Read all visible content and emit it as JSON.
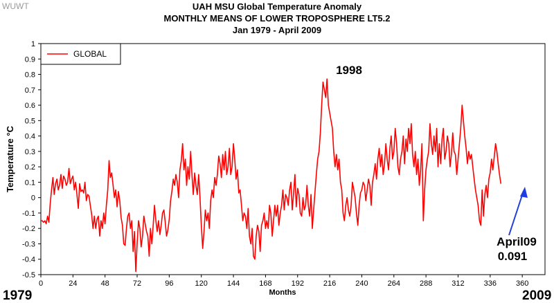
{
  "watermark": "WUWT",
  "chart_data": {
    "type": "line",
    "title": "UAH MSU Global Temperature Anomaly",
    "subtitle": "MONTHLY MEANS OF LOWER TROPOSPHERE LT5.2",
    "period": "Jan 1979 - April 2009",
    "xlabel": "Months",
    "ylabel": "Temperature °C",
    "xlim": [
      0,
      377
    ],
    "ylim": [
      -0.5,
      1
    ],
    "xticks": [
      0,
      24,
      48,
      72,
      96,
      120,
      144,
      168,
      192,
      216,
      240,
      264,
      288,
      312,
      336,
      360
    ],
    "yticks": [
      -0.5,
      -0.4,
      -0.3,
      -0.2,
      -0.1,
      0,
      0.1,
      0.2,
      0.3,
      0.4,
      0.5,
      0.6,
      0.7,
      0.8,
      0.9,
      1
    ],
    "ytick_labels": [
      "-0.5",
      "-0.4",
      "-0.3",
      "-0.2",
      "-0.1",
      "0",
      "0.1",
      "0.2",
      "0.3",
      "0.4",
      "0.5",
      "0.6",
      "0.7",
      "0.8",
      "0.9",
      "1"
    ],
    "legend": {
      "position": "top-left",
      "entries": [
        "GLOBAL"
      ]
    },
    "start_year_label": "1979",
    "end_year_label": "2009",
    "annotations": {
      "peak_label": "1998",
      "last_label": "April09",
      "last_value_label": "0.091"
    },
    "series": [
      {
        "name": "GLOBAL",
        "color": "#ff0000",
        "values": [
          -0.15,
          -0.15,
          -0.16,
          -0.15,
          -0.17,
          -0.12,
          -0.16,
          -0.04,
          0.05,
          0.13,
          0.02,
          0.09,
          0.12,
          0.05,
          0.08,
          0.15,
          0.06,
          0.14,
          0.12,
          0.08,
          0.1,
          0.19,
          0.09,
          0.12,
          0.14,
          0.05,
          0.1,
          0.02,
          -0.07,
          0.09,
          0.04,
          0.05,
          0.03,
          0.1,
          -0.02,
          0.02,
          0.01,
          -0.05,
          -0.11,
          -0.2,
          -0.12,
          -0.2,
          -0.14,
          -0.12,
          -0.25,
          -0.15,
          -0.2,
          -0.1,
          -0.17,
          -0.05,
          0.05,
          0.24,
          0.13,
          0.16,
          0.08,
          0.0,
          0.05,
          -0.06,
          0.04,
          -0.02,
          -0.13,
          -0.18,
          -0.3,
          -0.31,
          -0.2,
          -0.12,
          -0.1,
          -0.2,
          -0.15,
          -0.35,
          -0.22,
          -0.48,
          -0.3,
          -0.15,
          -0.2,
          -0.32,
          -0.25,
          -0.12,
          -0.17,
          -0.22,
          -0.25,
          -0.38,
          -0.2,
          -0.3,
          -0.18,
          -0.05,
          -0.15,
          -0.22,
          -0.15,
          -0.24,
          -0.18,
          -0.1,
          -0.08,
          -0.16,
          -0.25,
          -0.21,
          -0.14,
          -0.02,
          0.04,
          0.12,
          0.08,
          0.15,
          0.1,
          0.0,
          0.18,
          0.24,
          0.35,
          0.18,
          0.25,
          0.08,
          0.2,
          0.12,
          0.3,
          0.15,
          0.02,
          0.16,
          0.08,
          0.02,
          0.15,
          0.0,
          -0.18,
          -0.33,
          -0.22,
          -0.08,
          -0.15,
          -0.1,
          -0.2,
          -0.02,
          0.05,
          0.0,
          0.13,
          0.08,
          0.15,
          0.27,
          0.22,
          0.13,
          0.28,
          0.18,
          0.3,
          0.15,
          0.2,
          0.32,
          0.15,
          0.2,
          0.35,
          0.25,
          0.12,
          0.18,
          0.03,
          0.05,
          -0.05,
          -0.15,
          -0.1,
          -0.12,
          -0.2,
          -0.07,
          -0.25,
          -0.3,
          -0.2,
          -0.38,
          -0.4,
          -0.25,
          -0.18,
          -0.22,
          -0.35,
          -0.18,
          -0.15,
          -0.1,
          -0.2,
          -0.15,
          -0.2,
          -0.05,
          -0.1,
          -0.25,
          -0.15,
          -0.05,
          -0.12,
          -0.05,
          -0.18,
          -0.1,
          -0.05,
          0.05,
          -0.08,
          0.02,
          0.0,
          -0.05,
          0.05,
          0.1,
          -0.08,
          0.03,
          0.15,
          -0.06,
          0.06,
          0.02,
          -0.1,
          -0.12,
          0.0,
          -0.08,
          -0.05,
          0.08,
          -0.05,
          -0.12,
          0.02,
          -0.2,
          -0.08,
          0.04,
          0.15,
          0.25,
          0.3,
          0.42,
          0.6,
          0.75,
          0.7,
          0.65,
          0.77,
          0.6,
          0.55,
          0.5,
          0.45,
          0.3,
          0.2,
          0.28,
          0.18,
          0.25,
          0.1,
          0.05,
          -0.1,
          -0.15,
          -0.05,
          0.0,
          -0.08,
          -0.12,
          -0.05,
          0.1,
          0.05,
          0.0,
          -0.1,
          -0.18,
          -0.05,
          0.03,
          0.05,
          0.1,
          0.08,
          -0.02,
          0.05,
          0.12,
          0.08,
          -0.05,
          0.1,
          0.15,
          0.22,
          0.12,
          0.25,
          0.32,
          0.2,
          0.28,
          0.15,
          0.22,
          0.35,
          0.25,
          0.18,
          0.32,
          0.4,
          0.25,
          0.3,
          0.45,
          0.35,
          0.2,
          0.15,
          0.25,
          0.3,
          0.4,
          0.22,
          0.38,
          0.3,
          0.45,
          0.35,
          0.48,
          0.28,
          0.2,
          0.3,
          0.15,
          0.25,
          0.08,
          0.18,
          0.35,
          -0.15,
          0.05,
          0.18,
          0.25,
          0.3,
          0.48,
          0.35,
          0.28,
          0.4,
          0.3,
          0.45,
          0.2,
          0.35,
          0.22,
          0.38,
          0.45,
          0.25,
          0.3,
          0.4,
          0.35,
          0.2,
          0.28,
          0.42,
          0.3,
          0.28,
          0.15,
          0.25,
          0.35,
          0.45,
          0.6,
          0.5,
          0.4,
          0.32,
          0.22,
          0.3,
          0.25,
          0.28,
          0.2,
          0.12,
          0.05,
          0.0,
          -0.05,
          -0.15,
          -0.18,
          0.05,
          -0.12,
          0.02,
          0.08,
          0.0,
          0.12,
          0.16,
          0.25,
          0.18,
          0.26,
          0.35,
          0.3,
          0.22,
          0.15,
          0.09
        ]
      }
    ]
  }
}
